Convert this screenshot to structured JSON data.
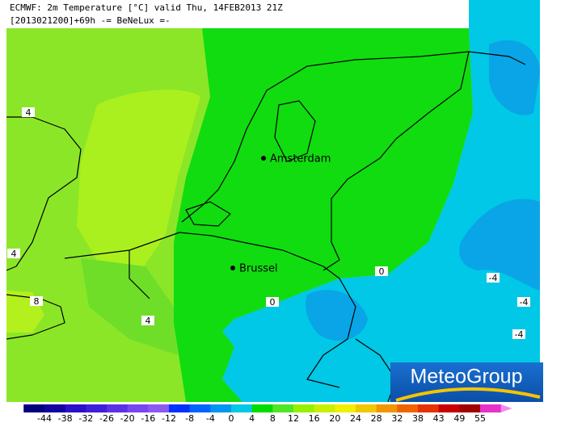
{
  "header": {
    "line1": "ECMWF: 2m Temperature [°C] valid Thu, 14FEB2013 21Z",
    "line2": "[2013021200]+69h -= BeNeLux =-"
  },
  "cities": [
    "Amsterdam",
    "Brussel"
  ],
  "contour_labels": [
    4,
    4,
    8,
    4,
    0,
    0,
    -4,
    -4,
    -4
  ],
  "colorbar": {
    "labels": [
      -44,
      -38,
      -32,
      -26,
      -20,
      -16,
      -12,
      -8,
      -4,
      0,
      4,
      8,
      12,
      16,
      20,
      24,
      28,
      32,
      38,
      43,
      49,
      55
    ]
  },
  "logo": "MeteoGroup"
}
